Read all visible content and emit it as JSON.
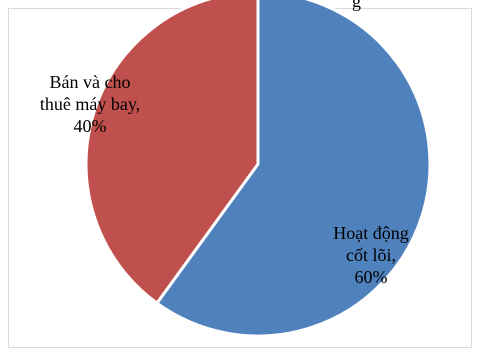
{
  "chart_data": {
    "type": "pie",
    "title_fragment": "g",
    "slices": [
      {
        "label_lines": [
          "Hoạt động",
          "cốt lõi,",
          "60%"
        ],
        "value": 60,
        "color": "#4f81bd"
      },
      {
        "label_lines": [
          "Bán và cho",
          "thuê máy bay,",
          "40%"
        ],
        "value": 40,
        "color": "#c0504d"
      }
    ]
  }
}
